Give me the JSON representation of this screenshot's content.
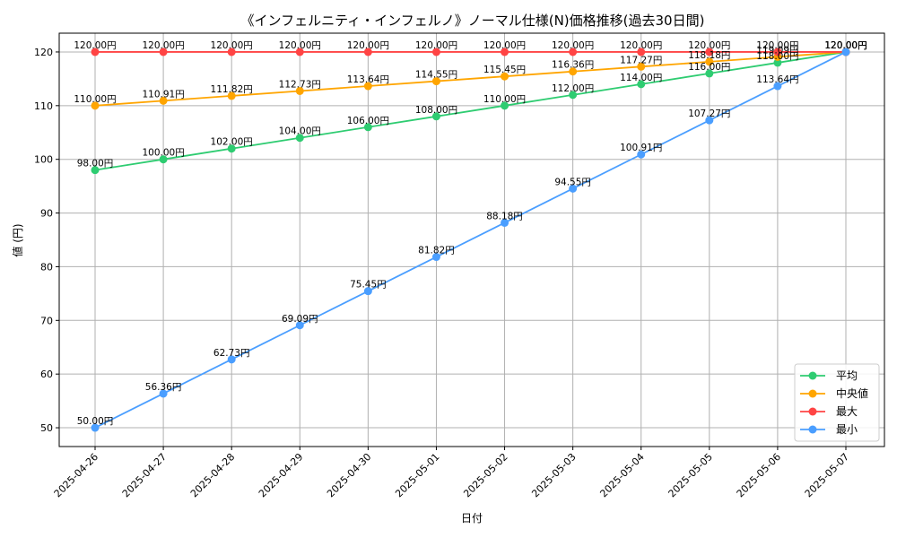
{
  "chart_data": {
    "type": "line",
    "title": "《インフェルニティ・インフェルノ》ノーマル仕様(N)価格推移(過去30日間)",
    "xlabel": "日付",
    "ylabel": "値 (円)",
    "ylim": [
      46.5,
      123.5
    ],
    "yticks": [
      50,
      60,
      70,
      80,
      90,
      100,
      110,
      120
    ],
    "grid": true,
    "legend_position": "lower-right",
    "categories": [
      "2025-04-26",
      "2025-04-27",
      "2025-04-28",
      "2025-04-29",
      "2025-04-30",
      "2025-05-01",
      "2025-05-02",
      "2025-05-03",
      "2025-05-04",
      "2025-05-05",
      "2025-05-06",
      "2025-05-07"
    ],
    "series": [
      {
        "name": "平均",
        "color": "#2ecc71",
        "values": [
          98.0,
          100.0,
          102.0,
          104.0,
          106.0,
          108.0,
          110.0,
          112.0,
          114.0,
          116.0,
          118.0,
          120.0
        ],
        "labels": [
          "98.00円",
          "100.00円",
          "102.00円",
          "104.00円",
          "106.00円",
          "108.00円",
          "110.00円",
          "112.00円",
          "114.00円",
          "116.00円",
          "118.00円",
          "120.00円"
        ]
      },
      {
        "name": "中央値",
        "color": "#ffa500",
        "values": [
          110.0,
          110.91,
          111.82,
          112.73,
          113.64,
          114.55,
          115.45,
          116.36,
          117.27,
          118.18,
          119.09,
          120.0
        ],
        "labels": [
          "110.00円",
          "110.91円",
          "111.82円",
          "112.73円",
          "113.64円",
          "114.55円",
          "115.45円",
          "116.36円",
          "117.27円",
          "118.18円",
          "119.09円",
          "120.00円"
        ]
      },
      {
        "name": "最大",
        "color": "#ff4444",
        "values": [
          120,
          120,
          120,
          120,
          120,
          120,
          120,
          120,
          120,
          120,
          120,
          120
        ],
        "labels": [
          "120.00円",
          "120.00円",
          "120.00円",
          "120.00円",
          "120.00円",
          "120.00円",
          "120.00円",
          "120.00円",
          "120.00円",
          "120.00円",
          "120.00円",
          "120.00円"
        ]
      },
      {
        "name": "最小",
        "color": "#4a9eff",
        "values": [
          50.0,
          56.36,
          62.73,
          69.09,
          75.45,
          81.82,
          88.18,
          94.55,
          100.91,
          107.27,
          113.64,
          120.0
        ],
        "labels": [
          "50.00円",
          "56.36円",
          "62.73円",
          "69.09円",
          "75.45円",
          "81.82円",
          "88.18円",
          "94.55円",
          "100.91円",
          "107.27円",
          "113.64円",
          "120.00円"
        ]
      }
    ]
  }
}
